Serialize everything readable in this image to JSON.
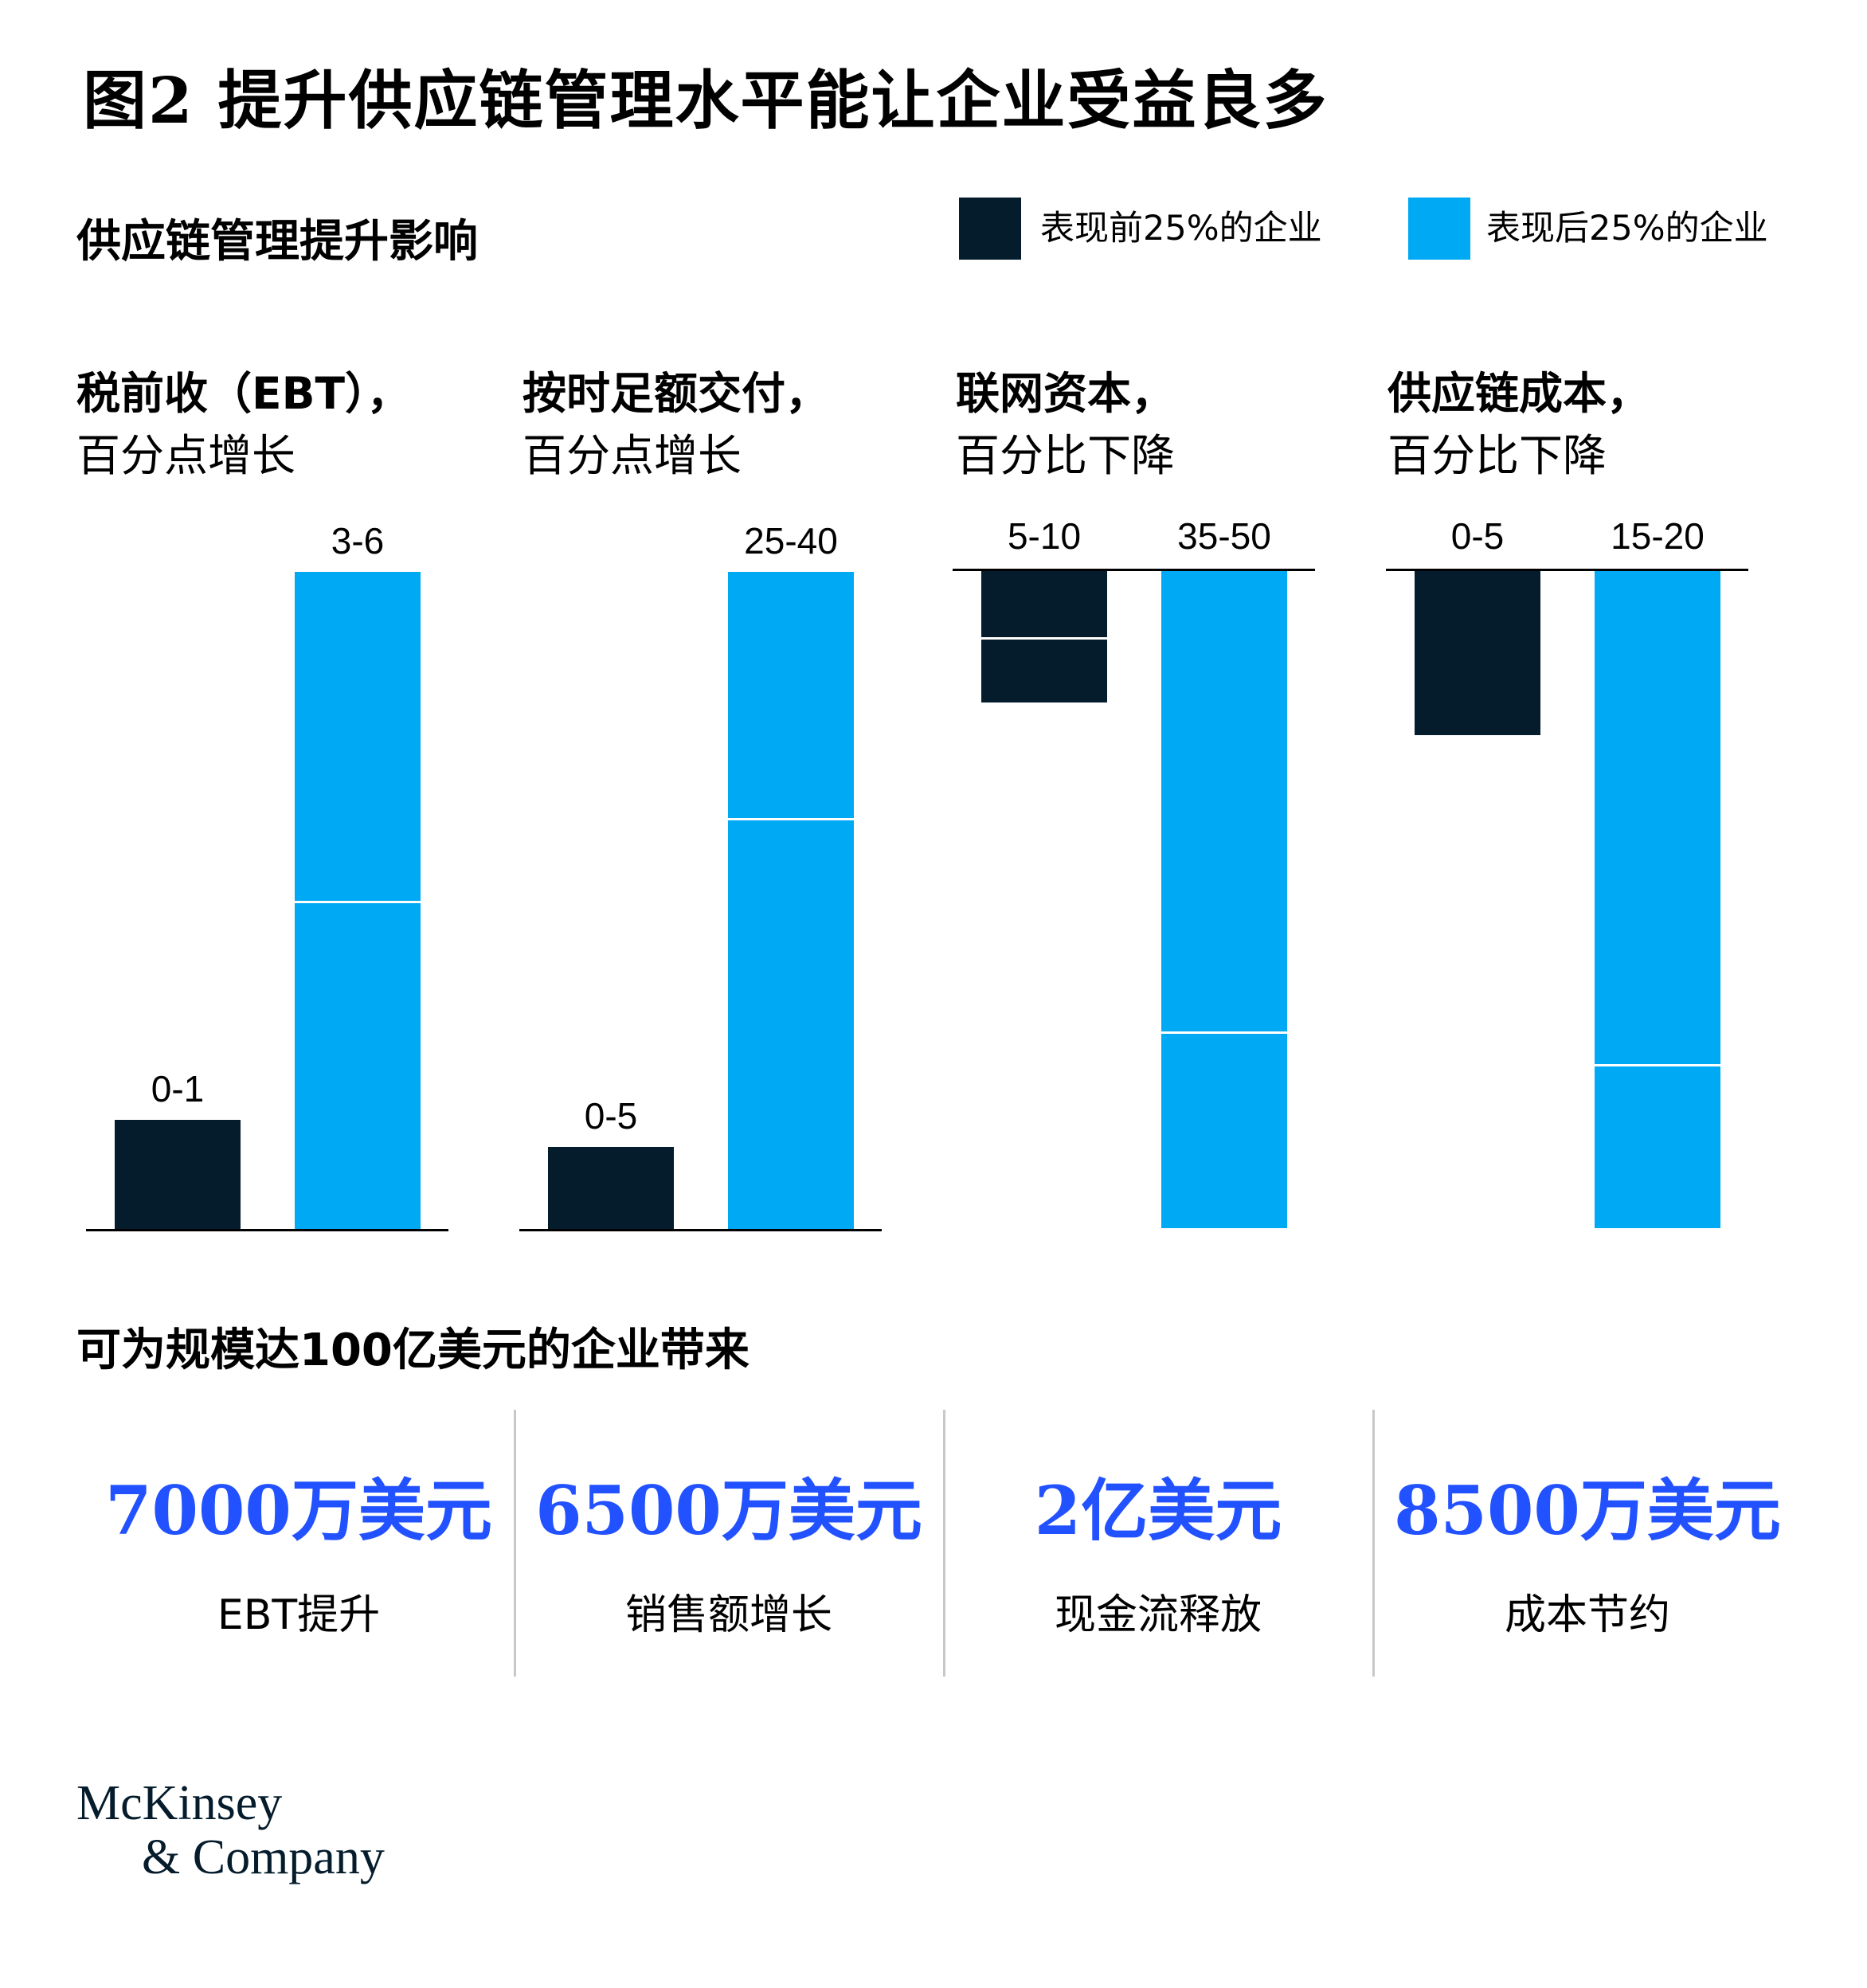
{
  "title": "图2 提升供应链管理水平能让企业受益良多",
  "subtitle": "供应链管理提升影响",
  "legend": [
    {
      "label": "表现前25%的企业",
      "color": "#051c2c"
    },
    {
      "label": "表现后25%的企业",
      "color": "#00a9f4"
    }
  ],
  "chart_data": [
    {
      "type": "bar",
      "title": "税前收（EBT），",
      "subtitle": "百分点增长",
      "direction": "increase",
      "categories": [
        "表现前25%的企业",
        "表现后25%的企业"
      ],
      "value_labels": [
        "0-1",
        "3-6"
      ],
      "ranges": [
        [
          0,
          1
        ],
        [
          3,
          6
        ]
      ],
      "ylim": [
        0,
        6
      ]
    },
    {
      "type": "bar",
      "title": "按时足额交付，",
      "subtitle": "百分点增长",
      "direction": "increase",
      "categories": [
        "表现前25%的企业",
        "表现后25%的企业"
      ],
      "value_labels": [
        "0-5",
        "25-40"
      ],
      "ranges": [
        [
          0,
          5
        ],
        [
          25,
          40
        ]
      ],
      "ylim": [
        0,
        40
      ]
    },
    {
      "type": "bar",
      "title": "联网资本，",
      "subtitle": "百分比下降",
      "direction": "decrease",
      "categories": [
        "表现前25%的企业",
        "表现后25%的企业"
      ],
      "value_labels": [
        "5-10",
        "35-50"
      ],
      "ranges": [
        [
          5,
          10
        ],
        [
          35,
          50
        ]
      ],
      "ylim": [
        0,
        50
      ]
    },
    {
      "type": "bar",
      "title": "供应链成本，",
      "subtitle": "百分比下降",
      "direction": "decrease",
      "categories": [
        "表现前25%的企业",
        "表现后25%的企业"
      ],
      "value_labels": [
        "0-5",
        "15-20"
      ],
      "ranges": [
        [
          0,
          5
        ],
        [
          15,
          20
        ]
      ],
      "ylim": [
        0,
        20
      ]
    }
  ],
  "benefits_heading": "可为规模达100亿美元的企业带来",
  "benefits": [
    {
      "value": "7000万美元",
      "label": "EBT提升"
    },
    {
      "value": "6500万美元",
      "label": "销售额增长"
    },
    {
      "value": "2亿美元",
      "label": "现金流释放"
    },
    {
      "value": "8500万美元",
      "label": "成本节约"
    }
  ],
  "logo": {
    "line1": "McKinsey",
    "line2": "& Company"
  }
}
